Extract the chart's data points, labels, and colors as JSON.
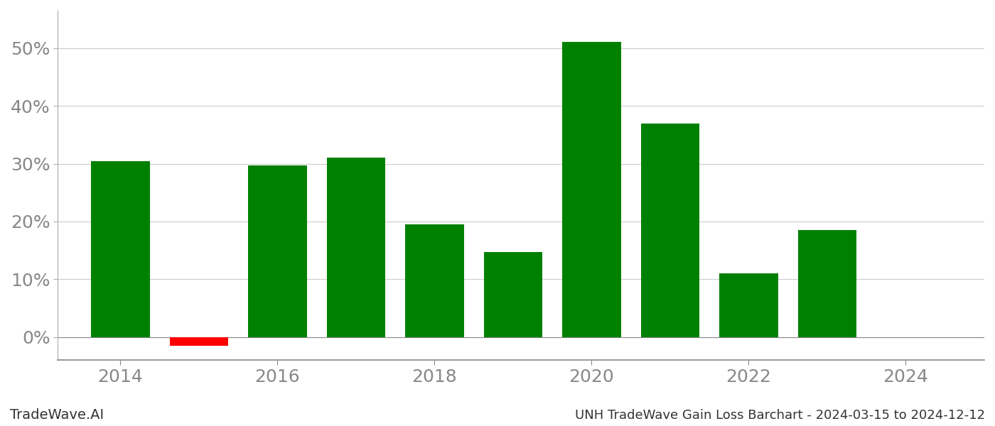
{
  "years": [
    2014,
    2015,
    2016,
    2017,
    2018,
    2019,
    2020,
    2021,
    2022,
    2023
  ],
  "values": [
    0.305,
    -0.015,
    0.297,
    0.31,
    0.195,
    0.147,
    0.511,
    0.37,
    0.11,
    0.185
  ],
  "green_color": "#008000",
  "red_color": "#ff0000",
  "background_color": "#ffffff",
  "grid_color": "#cccccc",
  "axis_label_color": "#888888",
  "title_text": "UNH TradeWave Gain Loss Barchart - 2024-03-15 to 2024-12-12",
  "watermark_text": "TradeWave.AI",
  "ytick_labels": [
    "0%",
    "10%",
    "20%",
    "30%",
    "40%",
    "50%"
  ],
  "ytick_values": [
    0.0,
    0.1,
    0.2,
    0.3,
    0.4,
    0.5
  ],
  "ylim_min": -0.04,
  "ylim_max": 0.565,
  "bar_width": 0.75,
  "tick_fontsize": 18,
  "watermark_fontsize": 14,
  "footer_fontsize": 13
}
